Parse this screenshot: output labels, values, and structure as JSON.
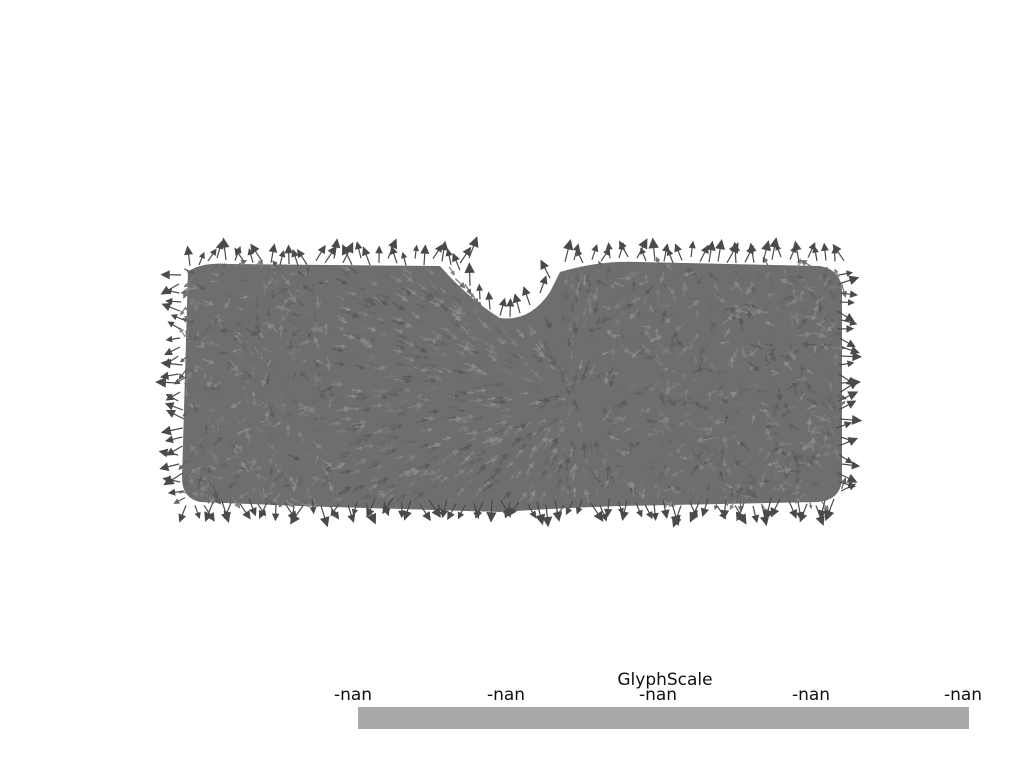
{
  "scene": {
    "background_color": "#ffffff",
    "glyph_color": "#6e6e6e",
    "glyph_edge_color": "#4a4a4a"
  },
  "scalar_bar": {
    "title": "GlyphScale",
    "tick_labels": [
      "-nan",
      "-nan",
      "-nan",
      "-nan",
      "-nan"
    ],
    "bar_color": "#a9a9a9"
  }
}
